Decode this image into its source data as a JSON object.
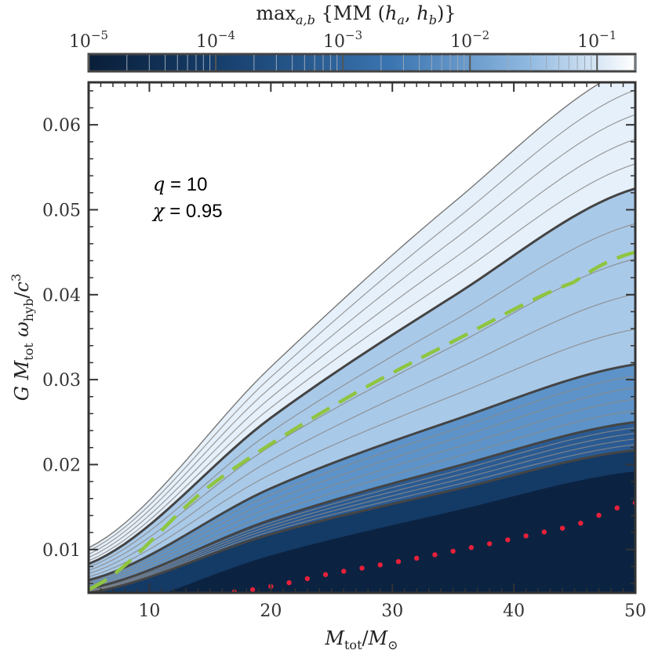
{
  "chart_data": {
    "type": "heatmap",
    "colorbar": {
      "title_prefix": "max",
      "title_sub": "a,b",
      "title_main": " {MM (",
      "title_h1": "h",
      "title_h1_sub": "a",
      "title_sep": ", ",
      "title_h2": "h",
      "title_h2_sub": "b",
      "title_close": ")}",
      "scale": "log",
      "range": [
        1e-05,
        0.2
      ],
      "ticks": [
        {
          "value": 1e-05,
          "base": "10",
          "exp": "−5"
        },
        {
          "value": 0.0001,
          "base": "10",
          "exp": "−4"
        },
        {
          "value": 0.001,
          "base": "10",
          "exp": "−3"
        },
        {
          "value": 0.01,
          "base": "10",
          "exp": "−2"
        },
        {
          "value": 0.1,
          "base": "10",
          "exp": "−1"
        }
      ],
      "colors": {
        "low": "#0b2341",
        "mid": "#3f7ab8",
        "high": "#ffffff"
      }
    },
    "x_axis": {
      "label_main": "M",
      "label_sub1": "tot",
      "label_slash": "/",
      "label_m2": "M",
      "label_sun": "⊙",
      "range": [
        5,
        50
      ],
      "ticks": [
        {
          "value": 10,
          "label": "10"
        },
        {
          "value": 20,
          "label": "20"
        },
        {
          "value": 30,
          "label": "30"
        },
        {
          "value": 40,
          "label": "40"
        },
        {
          "value": 50,
          "label": "50"
        }
      ]
    },
    "y_axis": {
      "label_g": "G M",
      "label_tot": "tot",
      "label_omega": " ω",
      "label_hyb": "hyb",
      "label_slash": "/",
      "label_c": "c",
      "label_exp": "3",
      "range": [
        0.0049,
        0.065
      ],
      "ticks": [
        {
          "value": 0.01,
          "label": "0.01"
        },
        {
          "value": 0.02,
          "label": "0.02"
        },
        {
          "value": 0.03,
          "label": "0.03"
        },
        {
          "value": 0.04,
          "label": "0.04"
        },
        {
          "value": 0.05,
          "label": "0.05"
        },
        {
          "value": 0.06,
          "label": "0.06"
        }
      ]
    },
    "contours": [
      {
        "level": 0.1,
        "weight": "thin",
        "points": [
          [
            5,
            0.0102
          ],
          [
            20,
            0.0315
          ],
          [
            35,
            0.0508
          ],
          [
            50,
            0.067
          ]
        ]
      },
      {
        "level": 0.01,
        "weight": "major",
        "points": [
          [
            5,
            0.0083
          ],
          [
            20,
            0.0255
          ],
          [
            35,
            0.0398
          ],
          [
            50,
            0.0525
          ]
        ]
      },
      {
        "level": 0.001,
        "weight": "major",
        "points": [
          [
            5,
            0.0064
          ],
          [
            20,
            0.0172
          ],
          [
            35,
            0.0252
          ],
          [
            50,
            0.0318
          ]
        ]
      },
      {
        "level": 0.0001,
        "weight": "major",
        "points": [
          [
            5,
            0.0054
          ],
          [
            20,
            0.0135
          ],
          [
            35,
            0.0197
          ],
          [
            50,
            0.025
          ]
        ]
      },
      {
        "level": 1e-05,
        "weight": "major",
        "points": [
          [
            5,
            0.0049
          ],
          [
            20,
            0.0118
          ],
          [
            35,
            0.017
          ],
          [
            50,
            0.0217
          ]
        ]
      }
    ],
    "series": [
      {
        "style": "dashed",
        "color": "#8fc540",
        "points": [
          [
            5,
            0.0053
          ],
          [
            15,
            0.0175
          ],
          [
            25,
            0.0268
          ],
          [
            35,
            0.0345
          ],
          [
            45,
            0.0415
          ],
          [
            50,
            0.045
          ]
        ]
      },
      {
        "style": "dotted",
        "color": "#e8203a",
        "points": [
          [
            17,
            0.005
          ],
          [
            25,
            0.0072
          ],
          [
            35,
            0.0098
          ],
          [
            45,
            0.0128
          ],
          [
            50,
            0.0155
          ]
        ]
      }
    ],
    "annotations": [
      {
        "var": "q",
        "text": " = 10"
      },
      {
        "var": "χ",
        "text": " = 0.95"
      }
    ]
  }
}
